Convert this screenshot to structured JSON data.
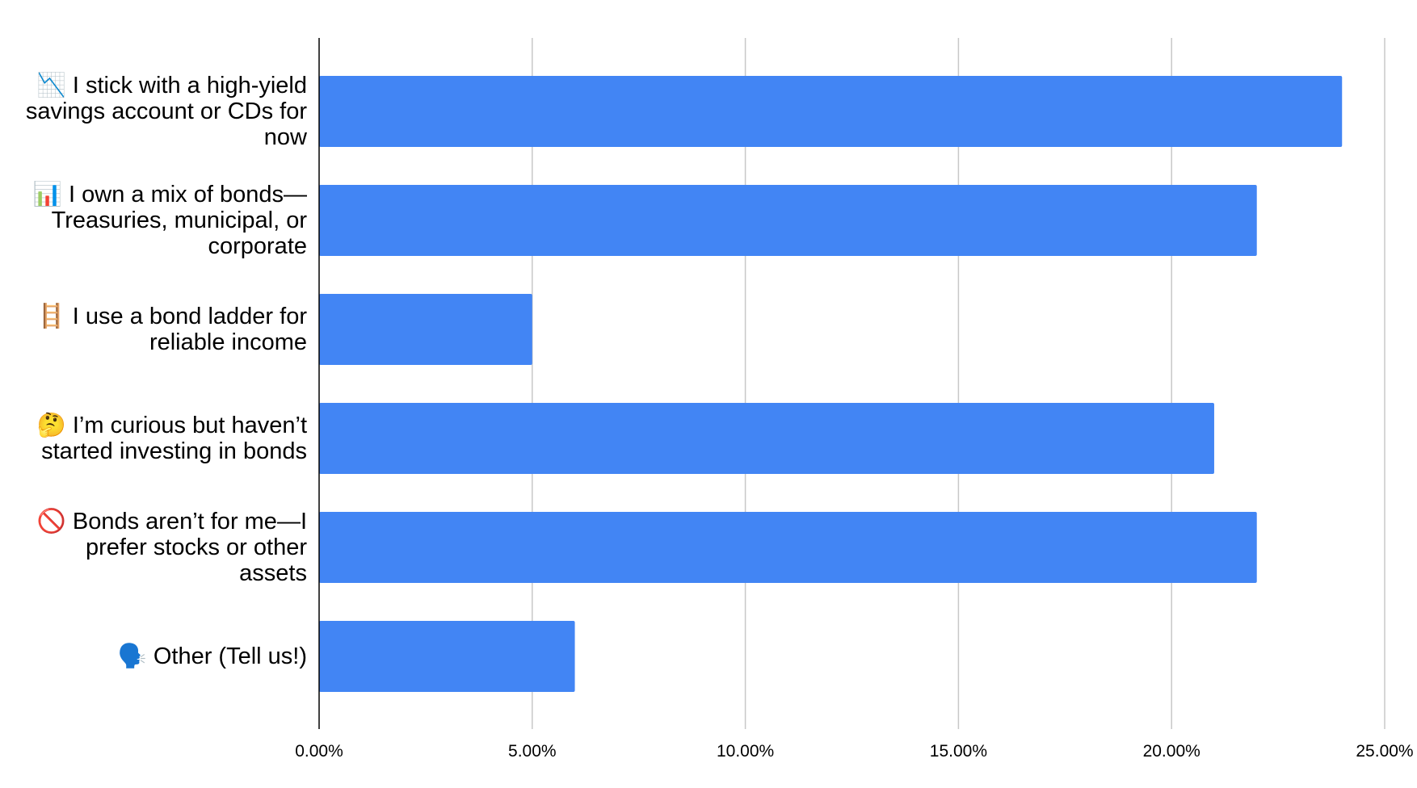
{
  "chart_data": {
    "type": "hbar",
    "categories": [
      "📉  I stick with a high-yield savings account or CDs for now",
      "📊  I own a mix of bonds—Treasuries, municipal, or corporate",
      "🪜  I use a bond ladder for reliable income",
      "🤔  I’m curious but haven’t started investing in bonds",
      "🚫  Bonds aren’t for me—I prefer stocks or other assets",
      "🗣️  Other (Tell us!)"
    ],
    "values": [
      24,
      22,
      5,
      21,
      22,
      6
    ],
    "color": "#4285f4",
    "xlim": [
      0,
      25
    ],
    "xticks": [
      {
        "value": 0,
        "label": "0.00%"
      },
      {
        "value": 5,
        "label": "5.00%"
      },
      {
        "value": 10,
        "label": "10.00%"
      },
      {
        "value": 15,
        "label": "15.00%"
      },
      {
        "value": 20,
        "label": "20.00%"
      },
      {
        "value": 25,
        "label": "25.00%"
      }
    ],
    "grid": true
  }
}
